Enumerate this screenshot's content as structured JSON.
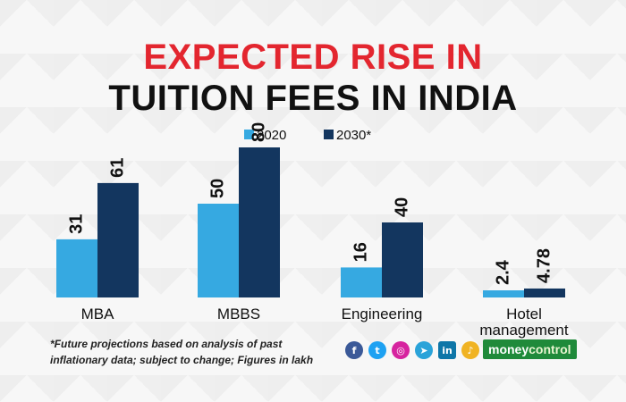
{
  "title_line1": "EXPECTED RISE IN",
  "title_line2": "TUITION FEES IN INDIA",
  "chart_data": {
    "type": "bar",
    "title": "EXPECTED RISE IN TUITION FEES IN INDIA",
    "categories": [
      "MBA",
      "MBBS",
      "Engineering",
      "Hotel\nmanagement"
    ],
    "series": [
      {
        "name": "2020",
        "values": [
          31,
          50,
          16,
          2.4
        ],
        "labels": [
          "31",
          "50",
          "16",
          "2.4"
        ]
      },
      {
        "name": "2030*",
        "values": [
          61,
          80,
          40,
          4.78
        ],
        "labels": [
          "61",
          "80",
          "40",
          "4.78"
        ]
      }
    ],
    "colors": {
      "2020": "#36a9e1",
      "2030*": "#13365f"
    },
    "ylim": [
      0,
      80
    ],
    "grid": false,
    "legend": "top-center",
    "xlabel": "",
    "ylabel": ""
  },
  "footnote": "*Future projections based on analysis of past inflationary data; subject to change; Figures in lakh",
  "social_icons": [
    "facebook-icon",
    "twitter-icon",
    "instagram-icon",
    "telegram-icon",
    "linkedin-icon",
    "notification-icon"
  ],
  "brand": {
    "part1": "money",
    "part2": "control",
    "color": "#1f8a3a"
  }
}
